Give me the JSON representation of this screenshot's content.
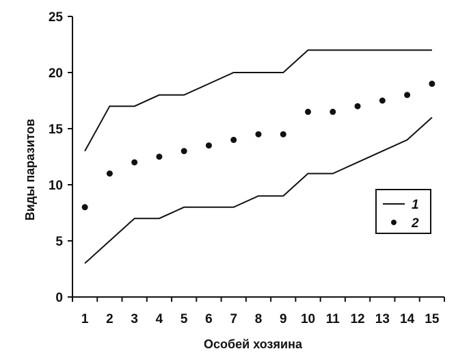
{
  "chart_data": {
    "type": "line",
    "xlabel": "Особей хозяина",
    "ylabel": "Виды паразитов",
    "x": [
      1,
      2,
      3,
      4,
      5,
      6,
      7,
      8,
      9,
      10,
      11,
      12,
      13,
      14,
      15
    ],
    "ylim": [
      0,
      25
    ],
    "yticks": [
      0,
      5,
      10,
      15,
      20,
      25
    ],
    "grid": false,
    "legend_position": "right",
    "colors": {
      "line": "#111111",
      "points": "#111111",
      "axis": "#111111"
    },
    "series": [
      {
        "name": "1",
        "kind": "line",
        "values": [
          13,
          17,
          17,
          18,
          18,
          19,
          20,
          20,
          20,
          22,
          22,
          22,
          22,
          22,
          22
        ]
      },
      {
        "name": "1",
        "kind": "line",
        "values": [
          3,
          5,
          7,
          7,
          8,
          8,
          8,
          9,
          9,
          11,
          11,
          12,
          13,
          14,
          16
        ]
      },
      {
        "name": "2",
        "kind": "points",
        "values": [
          8,
          11,
          12,
          12.5,
          13,
          13.5,
          14,
          14.5,
          14.5,
          16.5,
          16.5,
          17,
          17.5,
          18,
          19
        ]
      }
    ],
    "legend": [
      {
        "symbol": "line",
        "label": "1"
      },
      {
        "symbol": "point",
        "label": "2"
      }
    ]
  }
}
